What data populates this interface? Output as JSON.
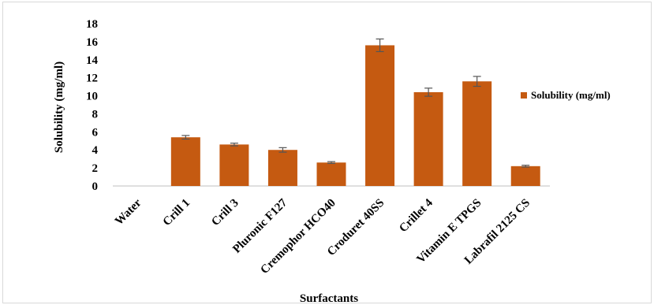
{
  "chart_data": {
    "type": "bar",
    "title": "",
    "xlabel": "Surfactants",
    "ylabel": "Solubility (mg/ml)",
    "ylim": [
      0,
      18
    ],
    "yticks": [
      0,
      2,
      4,
      6,
      8,
      10,
      12,
      14,
      16,
      18
    ],
    "grid": false,
    "legend_position": "right",
    "categories": [
      "Water",
      "Crill 1",
      "Crill 3",
      "Pluronic F127",
      "Cremophor HCO40",
      "Croduret 40SS",
      "Crillet 4",
      "Vitamin E TPGS",
      "Labrafil 2125 CS"
    ],
    "series": [
      {
        "name": "Solubility (mg/ml)",
        "color": "#c55a11",
        "values": [
          0,
          5.4,
          4.6,
          4.0,
          2.6,
          15.6,
          10.4,
          11.6,
          2.2
        ],
        "errors": [
          0,
          0.2,
          0.15,
          0.25,
          0.1,
          0.7,
          0.45,
          0.55,
          0.1
        ]
      }
    ]
  }
}
